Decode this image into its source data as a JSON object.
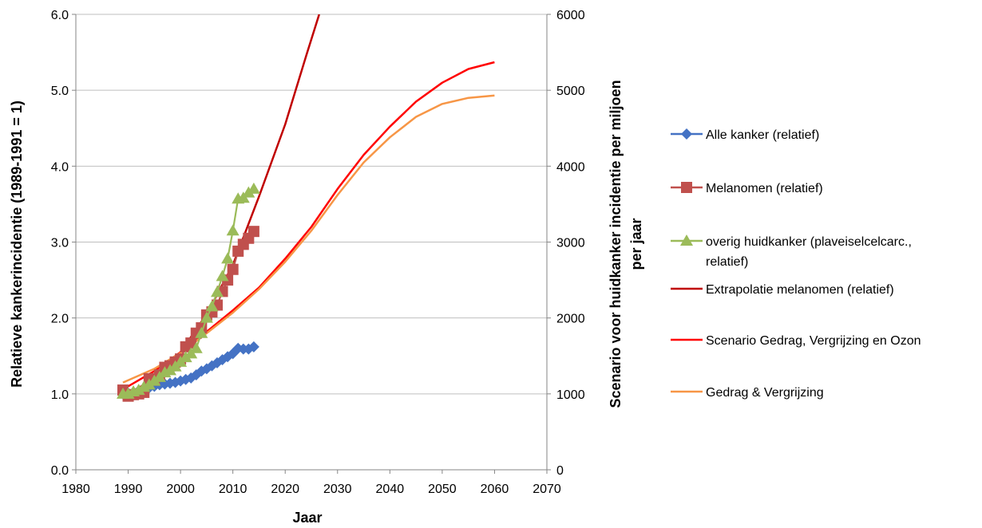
{
  "chart_data": {
    "type": "line",
    "xlabel": "Jaar",
    "ylabel_left": "Relatieve kankerincidentie (1989-1991 = 1)",
    "ylabel_right": [
      "Scenario voor huidkanker incidentie per miljoen",
      "per jaar"
    ],
    "xlim": [
      1980,
      2070
    ],
    "ylim_left": [
      0,
      6
    ],
    "ylim_right": [
      0,
      6000
    ],
    "x_ticks": [
      "1980",
      "1990",
      "2000",
      "2010",
      "2020",
      "2030",
      "2040",
      "2050",
      "2060",
      "2070"
    ],
    "y_left_ticks": [
      "0.0",
      "1.0",
      "2.0",
      "3.0",
      "4.0",
      "5.0",
      "6.0"
    ],
    "y_right_ticks": [
      "0",
      "1000",
      "2000",
      "3000",
      "4000",
      "5000",
      "6000"
    ],
    "grid": "horizontal",
    "legend_position": "right",
    "series": [
      {
        "name": "Alle kanker (relatief)",
        "color": "#4472C4",
        "marker": "diamond",
        "axis": "left",
        "x": [
          1989,
          1990,
          1991,
          1992,
          1993,
          1994,
          1995,
          1996,
          1997,
          1998,
          1999,
          2000,
          2001,
          2002,
          2003,
          2004,
          2005,
          2006,
          2007,
          2008,
          2009,
          2010,
          2011,
          2012,
          2013,
          2014
        ],
        "y": [
          1.0,
          1.01,
          1.02,
          1.04,
          1.06,
          1.08,
          1.1,
          1.12,
          1.13,
          1.14,
          1.15,
          1.17,
          1.19,
          1.21,
          1.25,
          1.3,
          1.33,
          1.37,
          1.41,
          1.45,
          1.49,
          1.53,
          1.6,
          1.59,
          1.59,
          1.62
        ]
      },
      {
        "name": "Melanomen (relatief)",
        "color": "#C0504D",
        "marker": "square",
        "axis": "left",
        "x": [
          1989,
          1990,
          1991,
          1992,
          1993,
          1994,
          1995,
          1996,
          1997,
          1998,
          1999,
          2000,
          2001,
          2002,
          2003,
          2004,
          2005,
          2006,
          2007,
          2008,
          2009,
          2010,
          2011,
          2012,
          2013,
          2014
        ],
        "y": [
          1.05,
          0.97,
          0.99,
          1.0,
          1.02,
          1.2,
          1.18,
          1.25,
          1.35,
          1.37,
          1.42,
          1.46,
          1.62,
          1.67,
          1.8,
          1.87,
          2.04,
          2.08,
          2.17,
          2.35,
          2.5,
          2.64,
          2.88,
          2.97,
          3.05,
          3.14
        ]
      },
      {
        "name": "overig huidkanker (plaveiselcelcarc., relatief)",
        "legend_lines": [
          "overig huidkanker (plaveiselcelcarc.,",
          "relatief)"
        ],
        "color": "#9BBB59",
        "marker": "triangle",
        "axis": "left",
        "x": [
          1989,
          1990,
          1991,
          1992,
          1993,
          1994,
          1995,
          1996,
          1997,
          1998,
          1999,
          2000,
          2001,
          2002,
          2003,
          2004,
          2005,
          2006,
          2007,
          2008,
          2009,
          2010,
          2011,
          2012,
          2013,
          2014
        ],
        "y": [
          1.0,
          1.0,
          1.03,
          1.05,
          1.09,
          1.12,
          1.17,
          1.22,
          1.28,
          1.31,
          1.36,
          1.42,
          1.48,
          1.53,
          1.6,
          1.8,
          2.0,
          2.15,
          2.34,
          2.55,
          2.78,
          3.15,
          3.57,
          3.58,
          3.65,
          3.7
        ]
      },
      {
        "name": "Extrapolatie melanomen (relatief)",
        "color": "#C00000",
        "marker": "none",
        "axis": "left",
        "x": [
          1990,
          1995,
          2000,
          2005,
          2010,
          2015,
          2020,
          2024,
          2026.5
        ],
        "y": [
          1.0,
          1.2,
          1.55,
          2.05,
          2.7,
          3.6,
          4.55,
          5.45,
          6.0
        ]
      },
      {
        "name": "Scenario Gedrag, Vergrijzing en Ozon",
        "color": "#FF0000",
        "marker": "none",
        "axis": "right",
        "x": [
          1990,
          1995,
          2000,
          2005,
          2010,
          2015,
          2020,
          2025,
          2030,
          2035,
          2040,
          2045,
          2050,
          2055,
          2060
        ],
        "y": [
          1100,
          1300,
          1550,
          1820,
          2100,
          2400,
          2780,
          3200,
          3700,
          4150,
          4520,
          4850,
          5100,
          5280,
          5370
        ]
      },
      {
        "name": "Gedrag & Vergrijzing",
        "color": "#F79646",
        "marker": "none",
        "axis": "right",
        "x": [
          1989,
          1995,
          2000,
          2005,
          2010,
          2015,
          2020,
          2025,
          2030,
          2035,
          2040,
          2045,
          2050,
          2055,
          2060
        ],
        "y": [
          1150,
          1330,
          1540,
          1800,
          2070,
          2380,
          2740,
          3150,
          3620,
          4050,
          4380,
          4650,
          4820,
          4900,
          4930
        ]
      }
    ]
  }
}
